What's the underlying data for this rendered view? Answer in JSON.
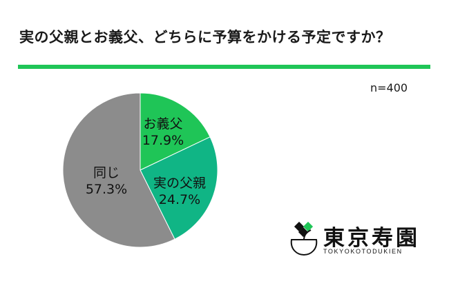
{
  "title": "実の父親とお義父、どちらに予算をかける予定ですか？",
  "sample_size": "n=400",
  "colors": {
    "accent_rule": "#1fc557",
    "otou_slice": "#1fc557",
    "jitsu_slice": "#10b585",
    "onaji_slice": "#8c8c8c"
  },
  "chart_data": {
    "type": "pie",
    "title": "実の父親とお義父、どちらに予算をかける予定ですか？",
    "slices": [
      {
        "label": "お義父",
        "value": 17.9,
        "display": "17.9%",
        "color": "#1fc557"
      },
      {
        "label": "実の父親",
        "value": 24.7,
        "display": "24.7%",
        "color": "#10b585"
      },
      {
        "label": "同じ",
        "value": 57.3,
        "display": "57.3%",
        "color": "#8c8c8c"
      }
    ],
    "start_angle_deg": 0,
    "direction": "clockwise"
  },
  "logo": {
    "name": "東京寿園",
    "roman": "TOKYOKOTODUKIEN",
    "icon": "kettle-leaf-icon"
  }
}
